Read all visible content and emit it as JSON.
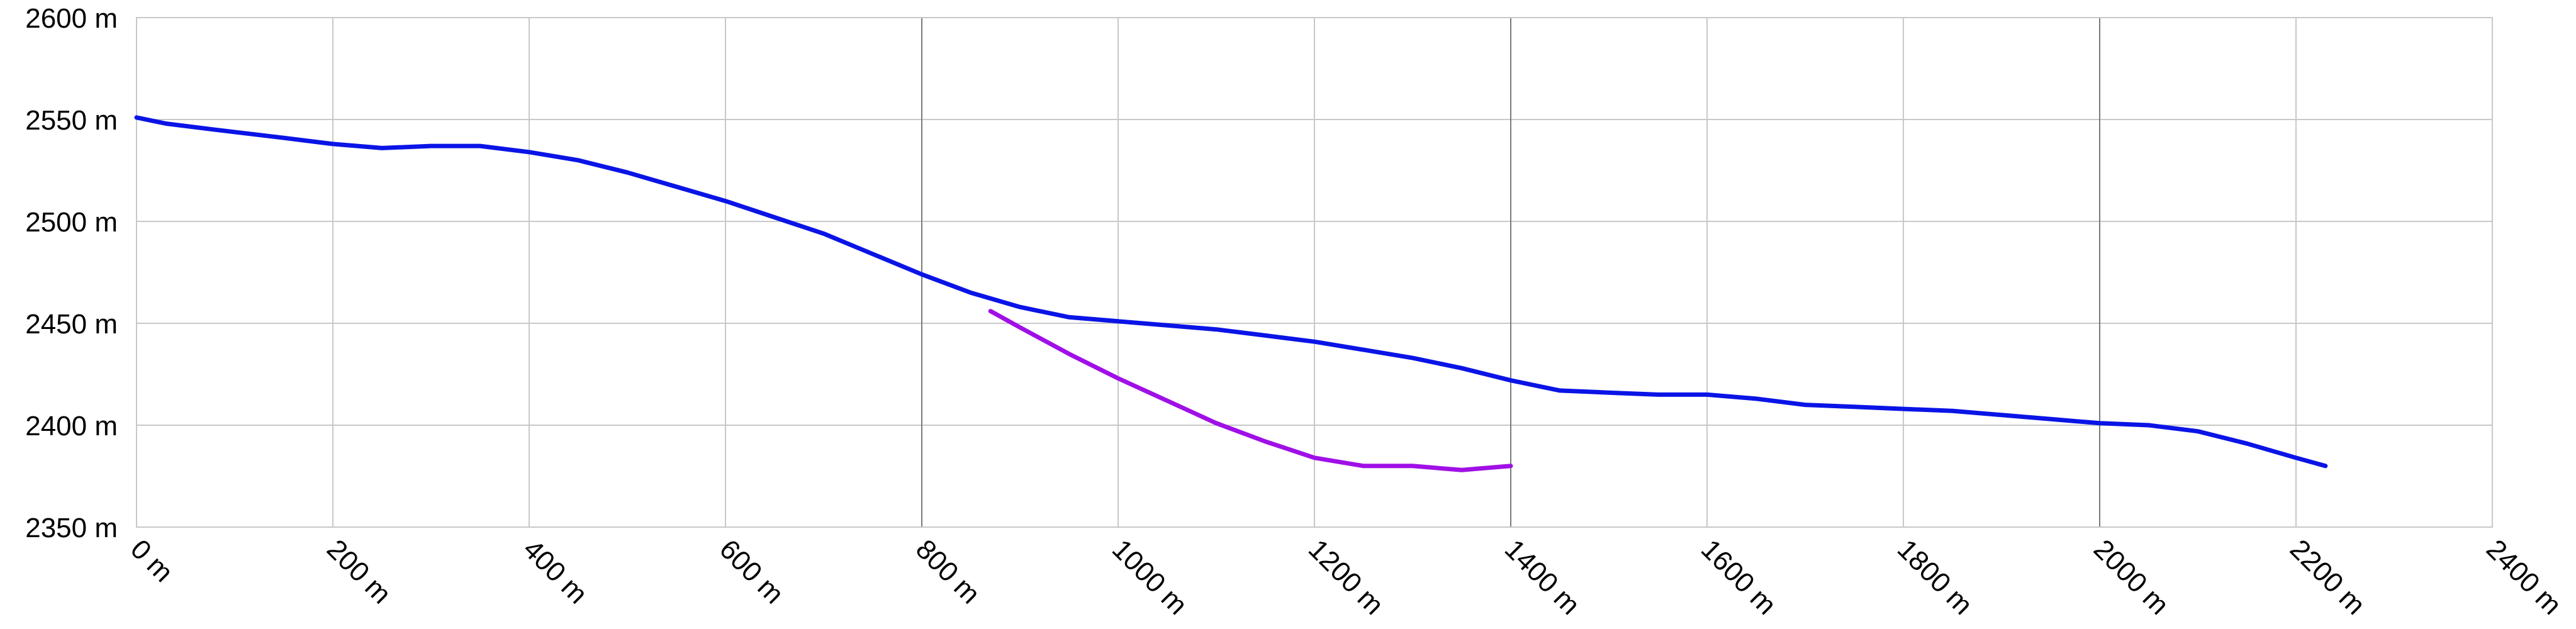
{
  "chart_data": {
    "type": "line",
    "title": "",
    "xlabel": "",
    "ylabel": "",
    "xlim": [
      0,
      2400
    ],
    "ylim": [
      2350,
      2600
    ],
    "grid": true,
    "x_ticks": [
      {
        "value": 0,
        "label": "0 m"
      },
      {
        "value": 200,
        "label": "200 m"
      },
      {
        "value": 400,
        "label": "400 m"
      },
      {
        "value": 600,
        "label": "600 m"
      },
      {
        "value": 800,
        "label": "800 m"
      },
      {
        "value": 1000,
        "label": "1000 m"
      },
      {
        "value": 1200,
        "label": "1200 m"
      },
      {
        "value": 1400,
        "label": "1400 m"
      },
      {
        "value": 1600,
        "label": "1600 m"
      },
      {
        "value": 1800,
        "label": "1800 m"
      },
      {
        "value": 2000,
        "label": "2000 m"
      },
      {
        "value": 2200,
        "label": "2200 m"
      },
      {
        "value": 2400,
        "label": "2400 m"
      }
    ],
    "y_ticks": [
      {
        "value": 2350,
        "label": "2350 m"
      },
      {
        "value": 2400,
        "label": "2400 m"
      },
      {
        "value": 2450,
        "label": "2450 m"
      },
      {
        "value": 2500,
        "label": "2500 m"
      },
      {
        "value": 2550,
        "label": "2550 m"
      },
      {
        "value": 2600,
        "label": "2600 m"
      }
    ],
    "emphasized_gridlines_x": [
      800,
      1400,
      2000
    ],
    "series": [
      {
        "color": "#0a14e6",
        "x": [
          0,
          30,
          80,
          150,
          200,
          250,
          300,
          350,
          400,
          450,
          500,
          550,
          600,
          650,
          700,
          750,
          800,
          850,
          900,
          950,
          1000,
          1050,
          1100,
          1150,
          1200,
          1250,
          1300,
          1350,
          1400,
          1450,
          1500,
          1550,
          1600,
          1650,
          1700,
          1750,
          1800,
          1850,
          1900,
          1950,
          2000,
          2050,
          2100,
          2150,
          2200,
          2230
        ],
        "y": [
          2551,
          2548,
          2545,
          2541,
          2538,
          2536,
          2537,
          2537,
          2534,
          2530,
          2524,
          2517,
          2510,
          2502,
          2494,
          2484,
          2474,
          2465,
          2458,
          2453,
          2451,
          2449,
          2447,
          2444,
          2441,
          2437,
          2433,
          2428,
          2422,
          2417,
          2416,
          2415,
          2415,
          2413,
          2410,
          2409,
          2408,
          2407,
          2405,
          2403,
          2401,
          2400,
          2397,
          2391,
          2384,
          2380
        ]
      },
      {
        "color": "#a010e6",
        "x": [
          870,
          900,
          950,
          1000,
          1050,
          1100,
          1150,
          1200,
          1250,
          1300,
          1350,
          1400
        ],
        "y": [
          2456,
          2448,
          2435,
          2423,
          2412,
          2401,
          2392,
          2384,
          2380,
          2380,
          2378,
          2380
        ]
      }
    ]
  }
}
